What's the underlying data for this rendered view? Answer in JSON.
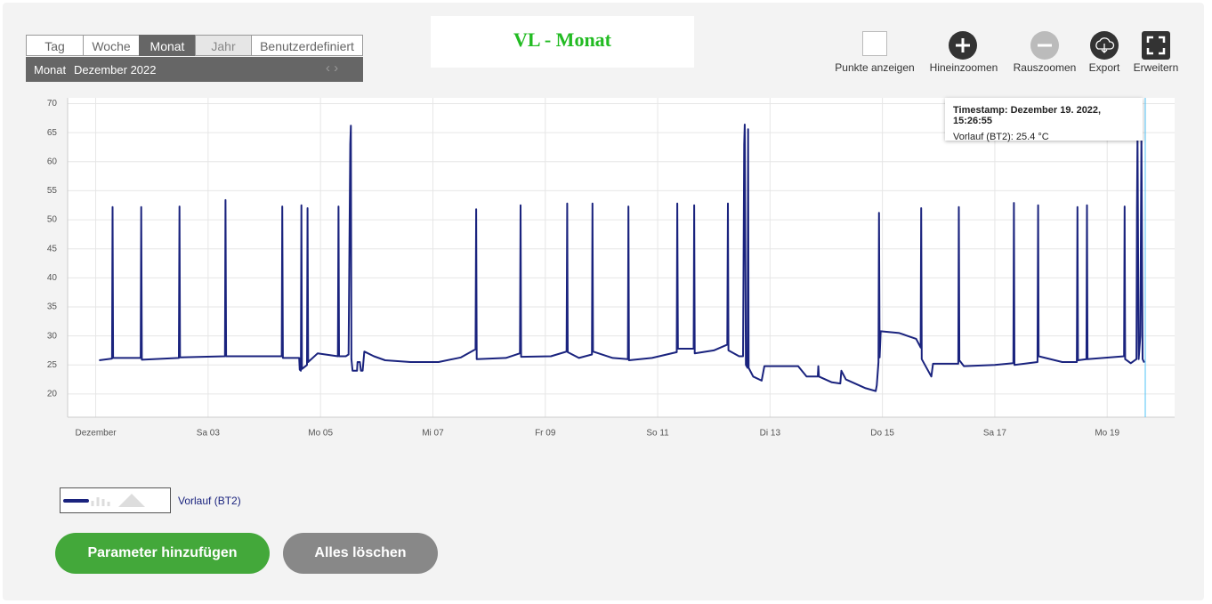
{
  "tabs": [
    "Tag",
    "Woche",
    "Monat",
    "Jahr",
    "Benutzerdefiniert"
  ],
  "period": {
    "label": "Monat",
    "value": "Dezember 2022"
  },
  "title": "VL - Monat",
  "toolbar": [
    "Punkte anzeigen",
    "Hineinzoomen",
    "Rauszoomen",
    "Export",
    "Erweitern"
  ],
  "tooltip": {
    "timestamp": "Timestamp: Dezember 19. 2022, 15:26:55",
    "value": "Vorlauf (BT2): 25.4 °C"
  },
  "buttons": [
    "Parameter hinzufügen",
    "Alles löschen"
  ],
  "chart_data": {
    "type": "line",
    "xlim": [
      0.5,
      20.2
    ],
    "xticks": [
      {
        "value": 1,
        "label": "Dezember"
      },
      {
        "value": 3,
        "label": "Sa 03"
      },
      {
        "value": 5,
        "label": "Mo 05"
      },
      {
        "value": 7,
        "label": "Mi 07"
      },
      {
        "value": 9,
        "label": "Fr 09"
      },
      {
        "value": 11,
        "label": "So 11"
      },
      {
        "value": 13,
        "label": "Di 13"
      },
      {
        "value": 15,
        "label": "Do 15"
      },
      {
        "value": 17,
        "label": "Sa 17"
      },
      {
        "value": 19,
        "label": "Mo 19"
      }
    ],
    "ylim": [
      16,
      71
    ],
    "yticks": [
      20,
      25,
      30,
      35,
      40,
      45,
      50,
      55,
      60,
      65,
      70
    ],
    "grid": true,
    "x": [
      1.06,
      1.29,
      1.3,
      1.31,
      1.8,
      1.81,
      1.82,
      2.48,
      2.49,
      2.5,
      3.3,
      3.31,
      3.32,
      4.31,
      4.32,
      4.33,
      4.62,
      4.63,
      4.65,
      4.66,
      4.67,
      4.76,
      4.77,
      4.78,
      4.95,
      5.31,
      5.32,
      5.33,
      5.45,
      5.5,
      5.53,
      5.54,
      5.55,
      5.57,
      5.65,
      5.66,
      5.7,
      5.72,
      5.75,
      5.78,
      5.95,
      6.15,
      6.6,
      7.1,
      7.5,
      7.76,
      7.77,
      7.78,
      8.3,
      8.55,
      8.56,
      8.57,
      9.1,
      9.38,
      9.39,
      9.4,
      9.6,
      9.83,
      9.84,
      9.85,
      10.2,
      10.47,
      10.48,
      10.49,
      10.9,
      11.34,
      11.35,
      11.36,
      11.64,
      11.65,
      11.66,
      12.0,
      12.24,
      12.25,
      12.26,
      12.45,
      12.52,
      12.54,
      12.55,
      12.57,
      12.6,
      12.61,
      12.62,
      12.7,
      12.85,
      12.9,
      13.5,
      13.65,
      13.85,
      13.86,
      13.87,
      14.1,
      14.25,
      14.27,
      14.35,
      14.7,
      14.88,
      14.9,
      14.93,
      14.94,
      14.95,
      14.97,
      15.3,
      15.6,
      15.68,
      15.69,
      15.7,
      15.87,
      15.9,
      16.35,
      16.36,
      16.37,
      16.45,
      17.0,
      17.33,
      17.34,
      17.35,
      17.76,
      17.77,
      17.78,
      18.2,
      18.46,
      18.47,
      18.48,
      18.63,
      18.64,
      18.65,
      19.3,
      19.31,
      19.32,
      19.42,
      19.52,
      19.53,
      19.54,
      19.56,
      19.59,
      19.61,
      19.63,
      19.66
    ],
    "series": [
      {
        "name": "Vorlauf (BT2)",
        "color": "#1a237e",
        "values": [
          25.8,
          26.1,
          52.2,
          26.2,
          26.2,
          52.2,
          25.9,
          26.2,
          52.3,
          26.3,
          26.5,
          53.4,
          26.5,
          26.5,
          52.3,
          26.2,
          26.2,
          24.2,
          24.0,
          52.5,
          24.3,
          25.0,
          52.0,
          25.5,
          27.0,
          26.5,
          52.3,
          26.5,
          26.5,
          26.8,
          63.0,
          66.2,
          26.0,
          24.0,
          24.0,
          25.5,
          25.5,
          24.0,
          24.0,
          27.3,
          26.5,
          25.8,
          25.5,
          25.5,
          26.3,
          27.7,
          51.8,
          26.0,
          26.2,
          27.0,
          52.5,
          26.4,
          26.5,
          27.3,
          52.8,
          27.2,
          26.2,
          26.8,
          52.8,
          27.3,
          26.2,
          26.0,
          52.3,
          25.8,
          26.2,
          27.2,
          52.8,
          27.8,
          27.8,
          52.5,
          27.0,
          27.5,
          28.5,
          52.8,
          27.5,
          26.5,
          26.5,
          63.0,
          66.4,
          25.0,
          24.5,
          65.6,
          24.5,
          23.0,
          22.3,
          24.8,
          24.8,
          23.0,
          23.0,
          24.8,
          23.0,
          22.0,
          21.8,
          24.0,
          22.5,
          21.0,
          20.5,
          21.5,
          25.5,
          51.2,
          26.3,
          30.8,
          30.5,
          29.5,
          28.0,
          52.0,
          26.0,
          23.0,
          25.2,
          25.2,
          52.2,
          25.8,
          24.8,
          25.0,
          25.3,
          52.9,
          25.0,
          25.5,
          52.5,
          26.5,
          25.5,
          25.5,
          52.2,
          25.8,
          26.0,
          52.5,
          26.0,
          26.5,
          52.3,
          26.0,
          25.3,
          26.0,
          52.0,
          64.7,
          26.0,
          30.0,
          65.0,
          26.0,
          25.4
        ]
      }
    ]
  }
}
